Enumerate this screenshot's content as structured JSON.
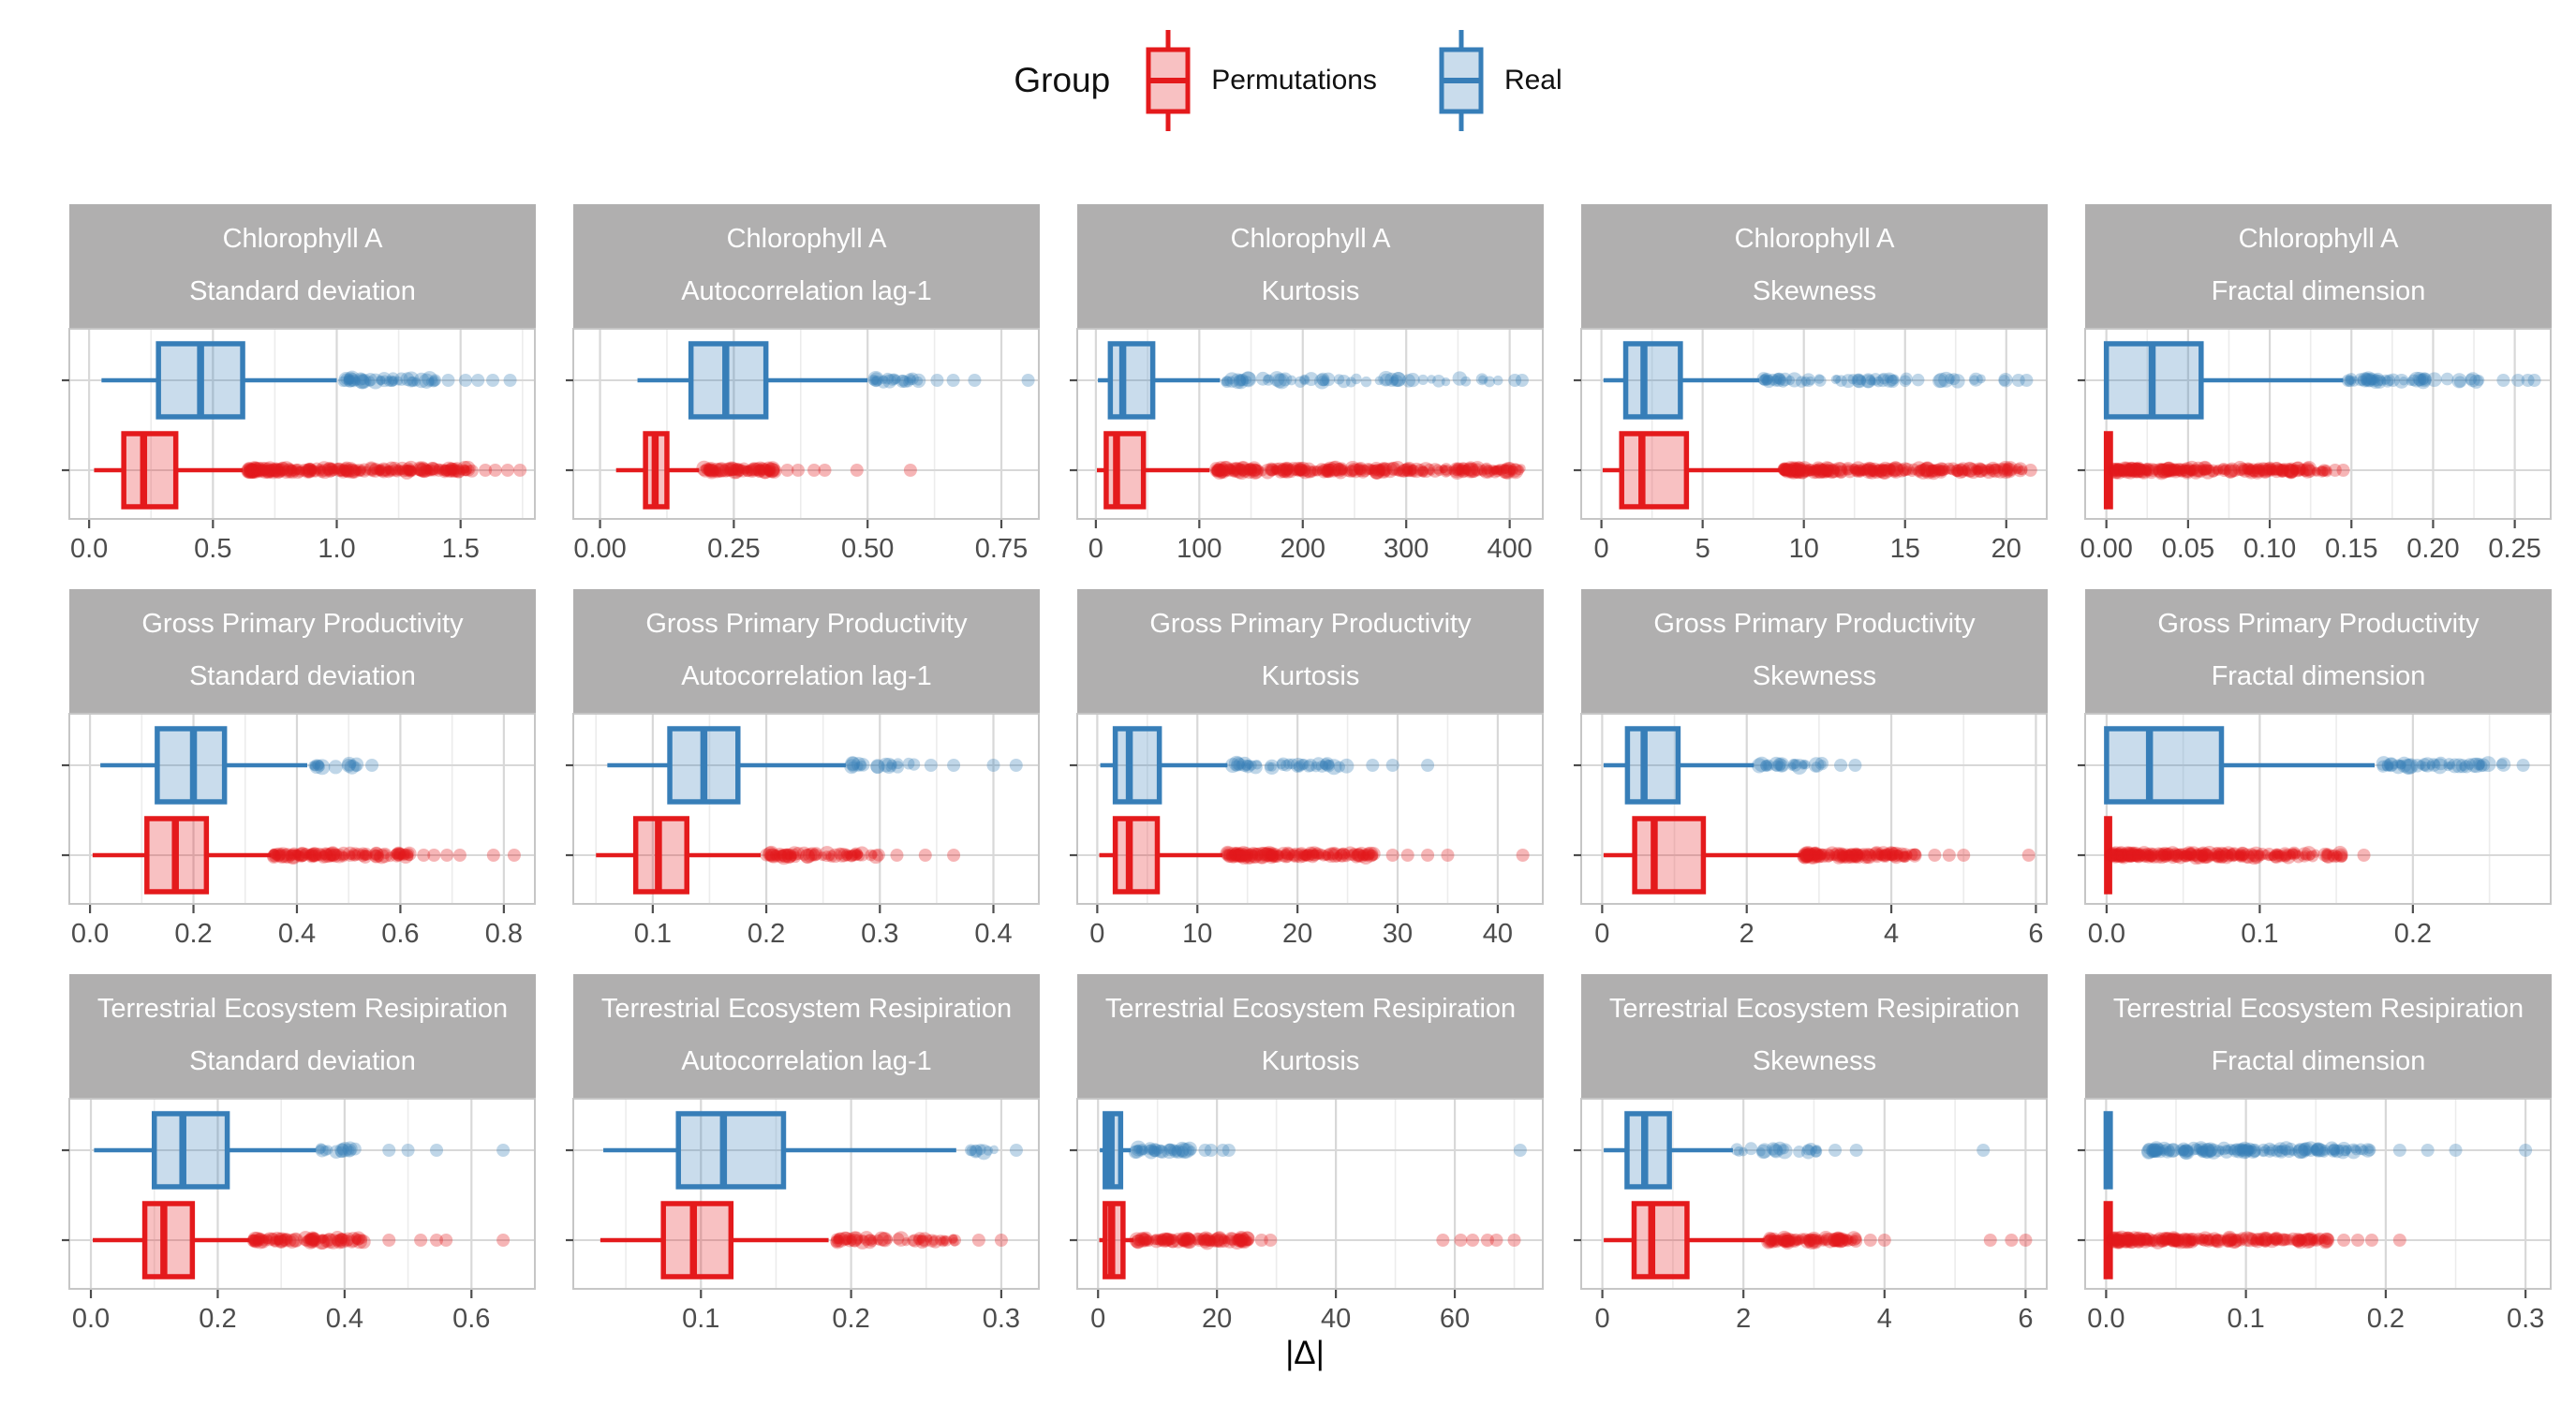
{
  "legend": {
    "title": "Group",
    "items": [
      {
        "label": "Permutations",
        "color": "#e41a1c"
      },
      {
        "label": "Real",
        "color": "#377eb8"
      }
    ]
  },
  "colors": {
    "permutations": "#e41a1c",
    "real": "#377eb8",
    "box_fill_opacity": 0.27,
    "outlier_opacity": 0.32,
    "strip_bg": "#b0afaf",
    "strip_text": "#ffffff",
    "grid_major": "#d8d8d8",
    "grid_minor": "#ececec",
    "panel_border": "#c6c6c6",
    "tick_text": "#4d4d4d",
    "tick_mark": "#4d4d4d",
    "axis_title": "#000000"
  },
  "chart_data": {
    "type": "boxplot",
    "orientation": "horizontal",
    "x_axis_title": "|Δ|",
    "legend_position": "top",
    "grid": "major+minor",
    "facet_rows": [
      "Chlorophyll A",
      "Gross Primary Productivity",
      "Terrestrial Ecosystem Resipiration"
    ],
    "facet_cols": [
      "Standard deviation",
      "Autocorrelation lag-1",
      "Kurtosis",
      "Skewness",
      "Fractal dimension"
    ],
    "groups": [
      {
        "name": "Real",
        "color": "#377eb8",
        "position": "top"
      },
      {
        "name": "Permutations",
        "color": "#e41a1c",
        "position": "bottom"
      }
    ],
    "panels": [
      {
        "facet_row": "Chlorophyll A",
        "facet_col": "Standard deviation",
        "domain": [
          -0.08,
          1.8
        ],
        "ticks": [
          0,
          0.5,
          1,
          1.5
        ],
        "tick_labels": [
          "0.0",
          "0.5",
          "1.0",
          "1.5"
        ],
        "real": {
          "whiskers": [
            0.05,
            1.0
          ],
          "box": [
            0.28,
            0.45,
            0.62
          ],
          "outlier_cluster": [
            1.02,
            1.4,
            45
          ],
          "outlier_points": [
            1.45,
            1.52,
            1.57,
            1.63,
            1.7
          ]
        },
        "perm": {
          "whiskers": [
            0.02,
            0.62
          ],
          "box": [
            0.14,
            0.22,
            0.35
          ],
          "outlier_cluster": [
            0.64,
            1.55,
            230
          ],
          "outlier_points": [
            1.6,
            1.64,
            1.69,
            1.74
          ]
        }
      },
      {
        "facet_row": "Chlorophyll A",
        "facet_col": "Autocorrelation lag-1",
        "domain": [
          -0.05,
          0.82
        ],
        "ticks": [
          0,
          0.25,
          0.5,
          0.75
        ],
        "tick_labels": [
          "0.00",
          "0.25",
          "0.50",
          "0.75"
        ],
        "real": {
          "whiskers": [
            0.07,
            0.5
          ],
          "box": [
            0.17,
            0.235,
            0.31
          ],
          "outlier_cluster": [
            0.51,
            0.6,
            22
          ],
          "outlier_points": [
            0.63,
            0.66,
            0.7,
            0.8
          ]
        },
        "perm": {
          "whiskers": [
            0.03,
            0.185
          ],
          "box": [
            0.085,
            0.103,
            0.125
          ],
          "outlier_cluster": [
            0.19,
            0.33,
            70
          ],
          "outlier_points": [
            0.35,
            0.37,
            0.4,
            0.42,
            0.48,
            0.58
          ]
        }
      },
      {
        "facet_row": "Chlorophyll A",
        "facet_col": "Kurtosis",
        "domain": [
          -18,
          432
        ],
        "ticks": [
          0,
          100,
          200,
          300,
          400
        ],
        "tick_labels": [
          "0",
          "100",
          "200",
          "300",
          "400"
        ],
        "real": {
          "whiskers": [
            2,
            120
          ],
          "box": [
            14,
            26,
            55
          ],
          "outlier_cluster": [
            125,
            395,
            55
          ],
          "outlier_points": [
            405,
            412
          ]
        },
        "perm": {
          "whiskers": [
            1,
            110
          ],
          "box": [
            10,
            20,
            46
          ],
          "outlier_cluster": [
            115,
            412,
            230
          ],
          "outlier_points": []
        }
      },
      {
        "facet_row": "Chlorophyll A",
        "facet_col": "Skewness",
        "domain": [
          -1,
          22
        ],
        "ticks": [
          0,
          5,
          10,
          15,
          20
        ],
        "tick_labels": [
          "0",
          "5",
          "10",
          "15",
          "20"
        ],
        "real": {
          "whiskers": [
            0.1,
            7.8
          ],
          "box": [
            1.2,
            2.1,
            3.9
          ],
          "outlier_cluster": [
            8,
            20,
            60
          ],
          "outlier_points": [
            20.6,
            21
          ]
        },
        "perm": {
          "whiskers": [
            0.06,
            8.8
          ],
          "box": [
            1.0,
            2.0,
            4.2
          ],
          "outlier_cluster": [
            9,
            20.8,
            220
          ],
          "outlier_points": [
            21.2
          ]
        }
      },
      {
        "facet_row": "Chlorophyll A",
        "facet_col": "Fractal dimension",
        "domain": [
          -0.013,
          0.272
        ],
        "ticks": [
          0,
          0.05,
          0.1,
          0.15,
          0.2,
          0.25
        ],
        "tick_labels": [
          "0.00",
          "0.05",
          "0.10",
          "0.15",
          "0.20",
          "0.25"
        ],
        "real": {
          "whiskers": [
            0.0,
            0.145
          ],
          "box": [
            0.0,
            0.028,
            0.058
          ],
          "outlier_cluster": [
            0.148,
            0.235,
            48
          ],
          "outlier_points": [
            0.243,
            0.252,
            0.258,
            0.262
          ]
        },
        "perm": {
          "whiskers": [
            0.0,
            0.004
          ],
          "box": [
            0.0,
            0.001,
            0.0025
          ],
          "outlier_cluster": [
            0.004,
            0.135,
            220
          ],
          "outlier_points": [
            0.14,
            0.145
          ]
        }
      },
      {
        "facet_row": "Gross Primary Productivity",
        "facet_col": "Standard deviation",
        "domain": [
          -0.04,
          0.86
        ],
        "ticks": [
          0,
          0.2,
          0.4,
          0.6,
          0.8
        ],
        "tick_labels": [
          "0.0",
          "0.2",
          "0.4",
          "0.6",
          "0.8"
        ],
        "real": {
          "whiskers": [
            0.02,
            0.42
          ],
          "box": [
            0.13,
            0.2,
            0.26
          ],
          "outlier_cluster": [
            0.43,
            0.52,
            16
          ],
          "outlier_points": [
            0.545
          ]
        },
        "perm": {
          "whiskers": [
            0.005,
            0.35
          ],
          "box": [
            0.11,
            0.165,
            0.225
          ],
          "outlier_cluster": [
            0.355,
            0.62,
            110
          ],
          "outlier_points": [
            0.645,
            0.665,
            0.69,
            0.715,
            0.78,
            0.82
          ]
        }
      },
      {
        "facet_row": "Gross Primary Productivity",
        "facet_col": "Autocorrelation lag-1",
        "domain": [
          0.03,
          0.44
        ],
        "ticks": [
          0.1,
          0.2,
          0.3,
          0.4
        ],
        "tick_labels": [
          "0.1",
          "0.2",
          "0.3",
          "0.4"
        ],
        "real": {
          "whiskers": [
            0.06,
            0.27
          ],
          "box": [
            0.115,
            0.145,
            0.175
          ],
          "outlier_cluster": [
            0.275,
            0.33,
            18
          ],
          "outlier_points": [
            0.345,
            0.365,
            0.4,
            0.42
          ]
        },
        "perm": {
          "whiskers": [
            0.05,
            0.195
          ],
          "box": [
            0.085,
            0.105,
            0.13
          ],
          "outlier_cluster": [
            0.2,
            0.3,
            65
          ],
          "outlier_points": [
            0.315,
            0.34,
            0.365
          ]
        }
      },
      {
        "facet_row": "Gross Primary Productivity",
        "facet_col": "Kurtosis",
        "domain": [
          -2,
          44.5
        ],
        "ticks": [
          0,
          10,
          20,
          30,
          40
        ],
        "tick_labels": [
          "0",
          "10",
          "20",
          "30",
          "40"
        ],
        "real": {
          "whiskers": [
            0.3,
            13
          ],
          "box": [
            1.8,
            3.2,
            6.2
          ],
          "outlier_cluster": [
            13.5,
            26,
            40
          ],
          "outlier_points": [
            27.5,
            29.5,
            33
          ]
        },
        "perm": {
          "whiskers": [
            0.2,
            12.5
          ],
          "box": [
            1.8,
            3.2,
            6.0
          ],
          "outlier_cluster": [
            13,
            28,
            140
          ],
          "outlier_points": [
            29.5,
            31,
            33,
            35,
            42.5
          ]
        }
      },
      {
        "facet_row": "Gross Primary Productivity",
        "facet_col": "Skewness",
        "domain": [
          -0.29,
          6.15
        ],
        "ticks": [
          0,
          2,
          4,
          6
        ],
        "tick_labels": [
          "0",
          "2",
          "4",
          "6"
        ],
        "real": {
          "whiskers": [
            0.02,
            2.1
          ],
          "box": [
            0.35,
            0.58,
            1.05
          ],
          "outlier_cluster": [
            2.15,
            3.1,
            24
          ],
          "outlier_points": [
            3.3,
            3.5
          ]
        },
        "perm": {
          "whiskers": [
            0.02,
            2.75
          ],
          "box": [
            0.45,
            0.72,
            1.4
          ],
          "outlier_cluster": [
            2.8,
            4.4,
            110
          ],
          "outlier_points": [
            4.6,
            4.8,
            5.0,
            5.9
          ]
        }
      },
      {
        "facet_row": "Gross Primary Productivity",
        "facet_col": "Fractal dimension",
        "domain": [
          -0.014,
          0.29
        ],
        "ticks": [
          0,
          0.1,
          0.2
        ],
        "tick_labels": [
          "0.0",
          "0.1",
          "0.2"
        ],
        "real": {
          "whiskers": [
            0.0,
            0.175
          ],
          "box": [
            0.0,
            0.028,
            0.075
          ],
          "outlier_cluster": [
            0.18,
            0.262,
            45
          ],
          "outlier_points": [
            0.272
          ]
        },
        "perm": {
          "whiskers": [
            0.0,
            0.003
          ],
          "box": [
            0.0,
            0.001,
            0.002
          ],
          "outlier_cluster": [
            0.003,
            0.155,
            220
          ],
          "outlier_points": [
            0.168
          ]
        }
      },
      {
        "facet_row": "Terrestrial Ecosystem Resipiration",
        "facet_col": "Standard deviation",
        "domain": [
          -0.034,
          0.7
        ],
        "ticks": [
          0,
          0.2,
          0.4,
          0.6
        ],
        "tick_labels": [
          "0.0",
          "0.2",
          "0.4",
          "0.6"
        ],
        "real": {
          "whiskers": [
            0.005,
            0.355
          ],
          "box": [
            0.1,
            0.145,
            0.215
          ],
          "outlier_cluster": [
            0.36,
            0.44,
            14
          ],
          "outlier_points": [
            0.47,
            0.5,
            0.545,
            0.65
          ]
        },
        "perm": {
          "whiskers": [
            0.003,
            0.25
          ],
          "box": [
            0.085,
            0.115,
            0.16
          ],
          "outlier_cluster": [
            0.255,
            0.43,
            85
          ],
          "outlier_points": [
            0.47,
            0.52,
            0.545,
            0.56,
            0.65
          ]
        }
      },
      {
        "facet_row": "Terrestrial Ecosystem Resipiration",
        "facet_col": "Autocorrelation lag-1",
        "domain": [
          0.015,
          0.325
        ],
        "ticks": [
          0.1,
          0.2,
          0.3
        ],
        "tick_labels": [
          "0.1",
          "0.2",
          "0.3"
        ],
        "real": {
          "whiskers": [
            0.035,
            0.27
          ],
          "box": [
            0.085,
            0.115,
            0.155
          ],
          "outlier_cluster": [
            0.275,
            0.3,
            8
          ],
          "outlier_points": [
            0.31
          ]
        },
        "perm": {
          "whiskers": [
            0.033,
            0.185
          ],
          "box": [
            0.075,
            0.095,
            0.12
          ],
          "outlier_cluster": [
            0.19,
            0.27,
            55
          ],
          "outlier_points": [
            0.285,
            0.3
          ]
        }
      },
      {
        "facet_row": "Terrestrial Ecosystem Resipiration",
        "facet_col": "Kurtosis",
        "domain": [
          -3.5,
          74.8
        ],
        "ticks": [
          0,
          20,
          40,
          60
        ],
        "tick_labels": [
          "0",
          "20",
          "40",
          "60"
        ],
        "real": {
          "whiskers": [
            0.3,
            5.5
          ],
          "box": [
            1.2,
            2.2,
            3.8
          ],
          "outlier_cluster": [
            6,
            16,
            32
          ],
          "outlier_points": [
            18,
            19,
            21,
            22,
            71
          ]
        },
        "perm": {
          "whiskers": [
            0.2,
            6.0
          ],
          "box": [
            1.2,
            2.3,
            4.2
          ],
          "outlier_cluster": [
            6.5,
            26,
            100
          ],
          "outlier_points": [
            27.5,
            29,
            58,
            61,
            63,
            65.5,
            67,
            70
          ]
        }
      },
      {
        "facet_row": "Terrestrial Ecosystem Resipiration",
        "facet_col": "Skewness",
        "domain": [
          -0.3,
          6.3
        ],
        "ticks": [
          0,
          2,
          4,
          6
        ],
        "tick_labels": [
          "0",
          "2",
          "4",
          "6"
        ],
        "real": {
          "whiskers": [
            0.02,
            1.85
          ],
          "box": [
            0.35,
            0.6,
            0.95
          ],
          "outlier_cluster": [
            1.9,
            3.1,
            20
          ],
          "outlier_points": [
            3.3,
            3.6,
            5.4
          ]
        },
        "perm": {
          "whiskers": [
            0.02,
            2.3
          ],
          "box": [
            0.45,
            0.7,
            1.2
          ],
          "outlier_cluster": [
            2.35,
            3.6,
            85
          ],
          "outlier_points": [
            3.8,
            4.0,
            5.5,
            5.8,
            6.0
          ]
        }
      },
      {
        "facet_row": "Terrestrial Ecosystem Resipiration",
        "facet_col": "Fractal dimension",
        "domain": [
          -0.015,
          0.318
        ],
        "ticks": [
          0,
          0.1,
          0.2,
          0.3
        ],
        "tick_labels": [
          "0.0",
          "0.1",
          "0.2",
          "0.3"
        ],
        "real": {
          "whiskers": [
            0.0,
            0.004
          ],
          "box": [
            0.0,
            0.001,
            0.003
          ],
          "outlier_cluster": [
            0.03,
            0.19,
            130
          ],
          "outlier_points": [
            0.21,
            0.23,
            0.25,
            0.3
          ]
        },
        "perm": {
          "whiskers": [
            0.0,
            0.004
          ],
          "box": [
            0.0,
            0.001,
            0.003
          ],
          "outlier_cluster": [
            0.004,
            0.16,
            200
          ],
          "outlier_points": [
            0.17,
            0.18,
            0.19,
            0.21
          ]
        }
      }
    ]
  }
}
